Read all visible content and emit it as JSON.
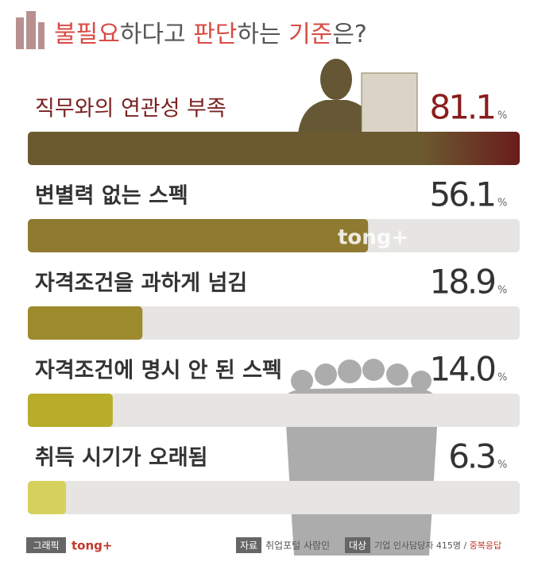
{
  "chart_data": {
    "type": "bar",
    "title_parts": [
      {
        "text": "불필요",
        "highlight": true
      },
      {
        "text": "하다고 ",
        "highlight": false
      },
      {
        "text": "판단",
        "highlight": true
      },
      {
        "text": "하는 ",
        "highlight": false
      },
      {
        "text": "기준",
        "highlight": true
      },
      {
        "text": "은?",
        "highlight": false
      }
    ],
    "categories": [
      "직무와의 연관성 부족",
      "변별력 없는 스펙",
      "자격조건을 과하게 넘김",
      "자격조건에 명시 안 된 스펙",
      "취득 시기가 오래됨"
    ],
    "values": [
      81.1,
      56.1,
      18.9,
      14.0,
      6.3
    ],
    "value_labels": [
      "81.1",
      "56.1",
      "18.9",
      "14.0",
      "6.3"
    ],
    "unit": "%",
    "colors": [
      "#6b5a30",
      "#8e7a30",
      "#9d8a2c",
      "#b7ad2a",
      "#d6d15c"
    ],
    "highlight_end_color": "#6a1c1c",
    "track_color": "#e7e5e3",
    "xlim": [
      0,
      81.1
    ],
    "watermark": "tong+",
    "footer": {
      "credit_label": "그래픽",
      "credit": "tong+",
      "source_label": "자료",
      "source": "취업포털 사람인",
      "target_label": "대상",
      "target": "기업 인사담당자 415명 / ",
      "target_highlight": "중복응답"
    }
  }
}
